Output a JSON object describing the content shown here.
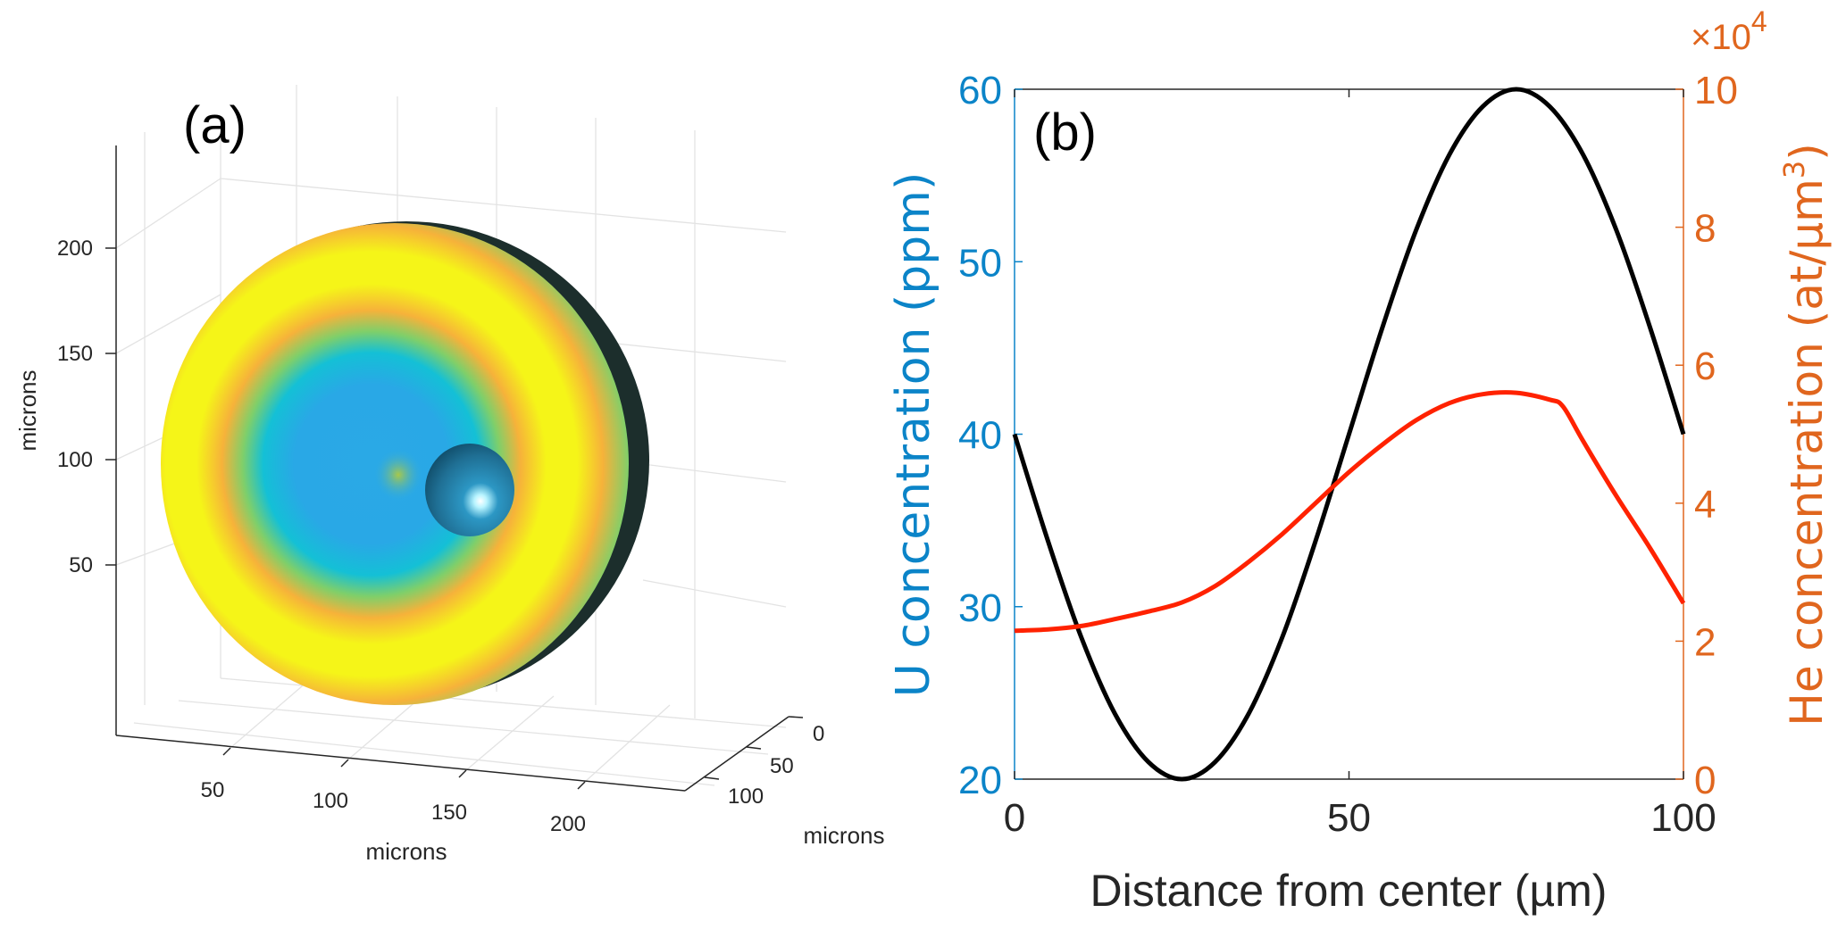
{
  "chart_data": [
    {
      "type": "surface3d",
      "panel_label": "(a)",
      "title": "",
      "xlabel": "microns",
      "ylabel": "microns",
      "zlabel": "microns",
      "x_ticks": [
        "50",
        "100",
        "150",
        "200"
      ],
      "y_ticks": [
        "0",
        "50",
        "100"
      ],
      "z_ticks": [
        "50",
        "100",
        "150",
        "200"
      ],
      "grid": true,
      "description": "Hemispherical cross-section of a crystal colored by concentration (concentric zoning: blue core, yellow outer ring, green rim) with a small inclusion sphere",
      "colormap_stops": [
        "#2aa9e6",
        "#14c0d6",
        "#7fcf6a",
        "#f6b23a",
        "#f5f518",
        "#f6b23a",
        "#7fcf6a"
      ],
      "inclusion_color": "#1f6f94"
    },
    {
      "type": "line",
      "panel_label": "(b)",
      "title": "",
      "xlabel": "Distance from center (µm)",
      "ylabel": "U concentration (ppm)",
      "ylabel_right": "He concentration (at/µm³)",
      "ylabel_right_main": "He concentration (at/µm",
      "ylabel_right_sup": "3",
      "ylabel_right_end": ")",
      "xlim": [
        0,
        100
      ],
      "ylim": [
        20,
        60
      ],
      "ylim_right": [
        0,
        100000
      ],
      "x_ticks": [
        "0",
        "50",
        "100"
      ],
      "y_ticks": [
        "20",
        "30",
        "40",
        "50",
        "60"
      ],
      "y_ticks_right": [
        "0",
        "2",
        "4",
        "6",
        "8",
        "10"
      ],
      "right_exponent_base": "×10",
      "right_exponent_power": "4",
      "grid": false,
      "axis_colors": {
        "left": "#0b84c8",
        "right": "#e0661e"
      },
      "series": [
        {
          "name": "U concentration",
          "axis": "left",
          "color": "#000000",
          "x": [
            0,
            5,
            10,
            15,
            20,
            25,
            30,
            35,
            40,
            45,
            50,
            55,
            60,
            65,
            70,
            75,
            80,
            85,
            90,
            95,
            100
          ],
          "y": [
            40,
            33.8,
            28.2,
            23.8,
            21.0,
            20.0,
            21.0,
            23.8,
            28.2,
            33.8,
            40.0,
            46.2,
            51.8,
            56.2,
            59.0,
            60.0,
            59.0,
            56.2,
            51.8,
            46.2,
            40.0
          ]
        },
        {
          "name": "He concentration",
          "axis": "right",
          "color": "#ff2200",
          "x": [
            0,
            5,
            10,
            15,
            20,
            25,
            30,
            35,
            40,
            45,
            50,
            55,
            60,
            65,
            70,
            75,
            80,
            82,
            85,
            90,
            95,
            100
          ],
          "y": [
            21500,
            21700,
            22200,
            23200,
            24300,
            25600,
            28000,
            31500,
            35500,
            40000,
            44500,
            48500,
            52000,
            54500,
            55800,
            56000,
            55000,
            54000,
            49000,
            41000,
            33500,
            25500
          ]
        }
      ]
    }
  ]
}
